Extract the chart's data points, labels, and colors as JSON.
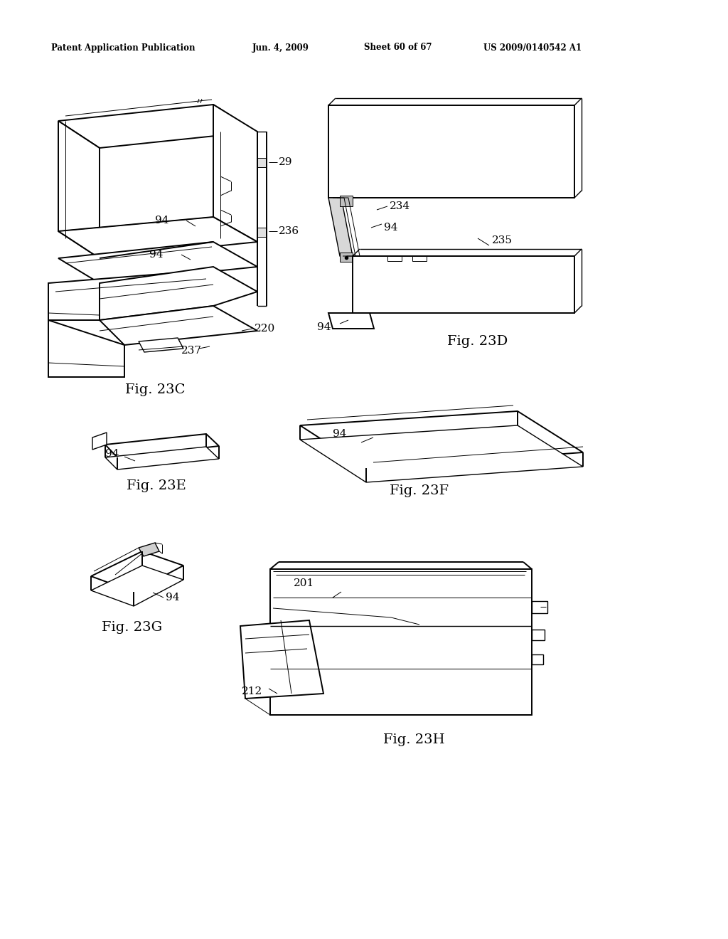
{
  "background_color": "#ffffff",
  "page_width": 10.24,
  "page_height": 13.2,
  "header_text": "Patent Application Publication",
  "header_date": "Jun. 4, 2009",
  "header_sheet": "Sheet 60 of 67",
  "header_patent": "US 2009/0140542 A1"
}
